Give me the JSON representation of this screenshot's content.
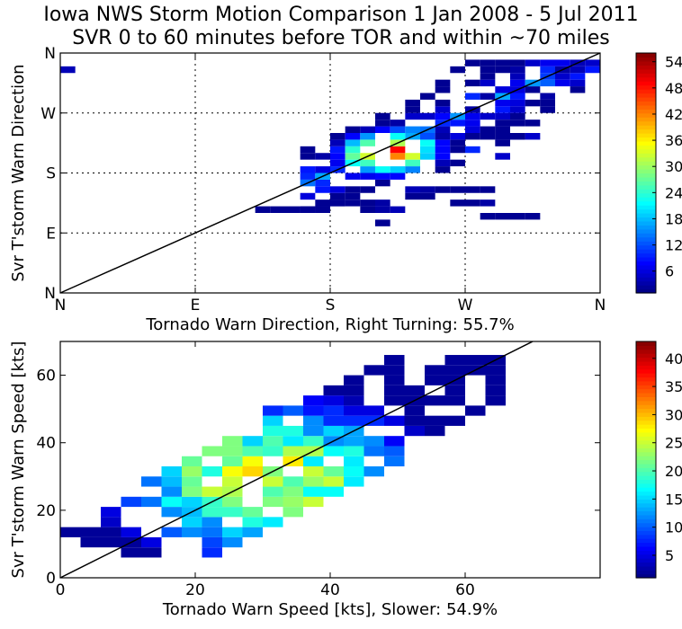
{
  "page": {
    "title_line1": "Iowa NWS Storm Motion Comparison 1 Jan 2008 - 5 Jul 2011",
    "title_line2": "SVR 0 to 60 minutes before TOR and within ~70 miles"
  },
  "chart_data": [
    {
      "type": "heatmap",
      "xlabel": "Tornado Warn Direction, Right Turning: 55.7%",
      "ylabel": "Svr T'storm Warn Direction",
      "xlim": [
        0,
        360
      ],
      "ylim": [
        0,
        360
      ],
      "xtick_values": [
        0,
        90,
        180,
        270,
        360
      ],
      "xtick_labels": [
        "N",
        "E",
        "S",
        "W",
        "N"
      ],
      "ytick_values": [
        0,
        90,
        180,
        270,
        360
      ],
      "ytick_labels": [
        "N",
        "E",
        "S",
        "W",
        "N"
      ],
      "grid": true,
      "reference_line": "one-to-one diagonal",
      "colorbar": {
        "min": 1,
        "max": 56,
        "ticks": [
          6,
          12,
          18,
          24,
          30,
          36,
          42,
          48,
          54
        ],
        "colormap": "jet"
      },
      "bin_width_deg": 10,
      "cells": [
        [
          0,
          330,
          4
        ],
        [
          230,
          140,
          2
        ],
        [
          240,
          140,
          2
        ],
        [
          230,
          150,
          4
        ],
        [
          240,
          150,
          3
        ],
        [
          250,
          150,
          2
        ],
        [
          260,
          150,
          2
        ],
        [
          270,
          150,
          2
        ],
        [
          280,
          150,
          2
        ],
        [
          180,
          130,
          2
        ],
        [
          190,
          130,
          2
        ],
        [
          200,
          130,
          2
        ],
        [
          210,
          130,
          3
        ],
        [
          260,
          130,
          2
        ],
        [
          270,
          130,
          2
        ],
        [
          280,
          130,
          3
        ],
        [
          130,
          120,
          2
        ],
        [
          140,
          120,
          2
        ],
        [
          150,
          120,
          2
        ],
        [
          160,
          120,
          2
        ],
        [
          170,
          120,
          2
        ],
        [
          200,
          120,
          2
        ],
        [
          210,
          120,
          3
        ],
        [
          220,
          120,
          4
        ],
        [
          210,
          100,
          2
        ],
        [
          280,
          110,
          2
        ],
        [
          290,
          110,
          2
        ],
        [
          300,
          110,
          2
        ],
        [
          310,
          110,
          2
        ],
        [
          270,
          210,
          10
        ],
        [
          290,
          200,
          5
        ],
        [
          300,
          230,
          6
        ],
        [
          310,
          230,
          5
        ]
      ]
    },
    {
      "type": "heatmap",
      "xlabel": "Tornado Warn Speed [kts], Slower: 54.9%",
      "ylabel": "Svr T'storm Warn Speed [kts]",
      "xlim": [
        0,
        80
      ],
      "ylim": [
        0,
        70
      ],
      "xtick_values": [
        0,
        20,
        40,
        60
      ],
      "ytick_values": [
        0,
        20,
        40,
        60
      ],
      "grid": false,
      "reference_line": "one-to-one diagonal",
      "colorbar": {
        "min": 1,
        "max": 43,
        "ticks": [
          5,
          10,
          15,
          20,
          25,
          30,
          35,
          40
        ],
        "colormap": "jet"
      },
      "bin_width_kts": 3,
      "cells": []
    }
  ]
}
